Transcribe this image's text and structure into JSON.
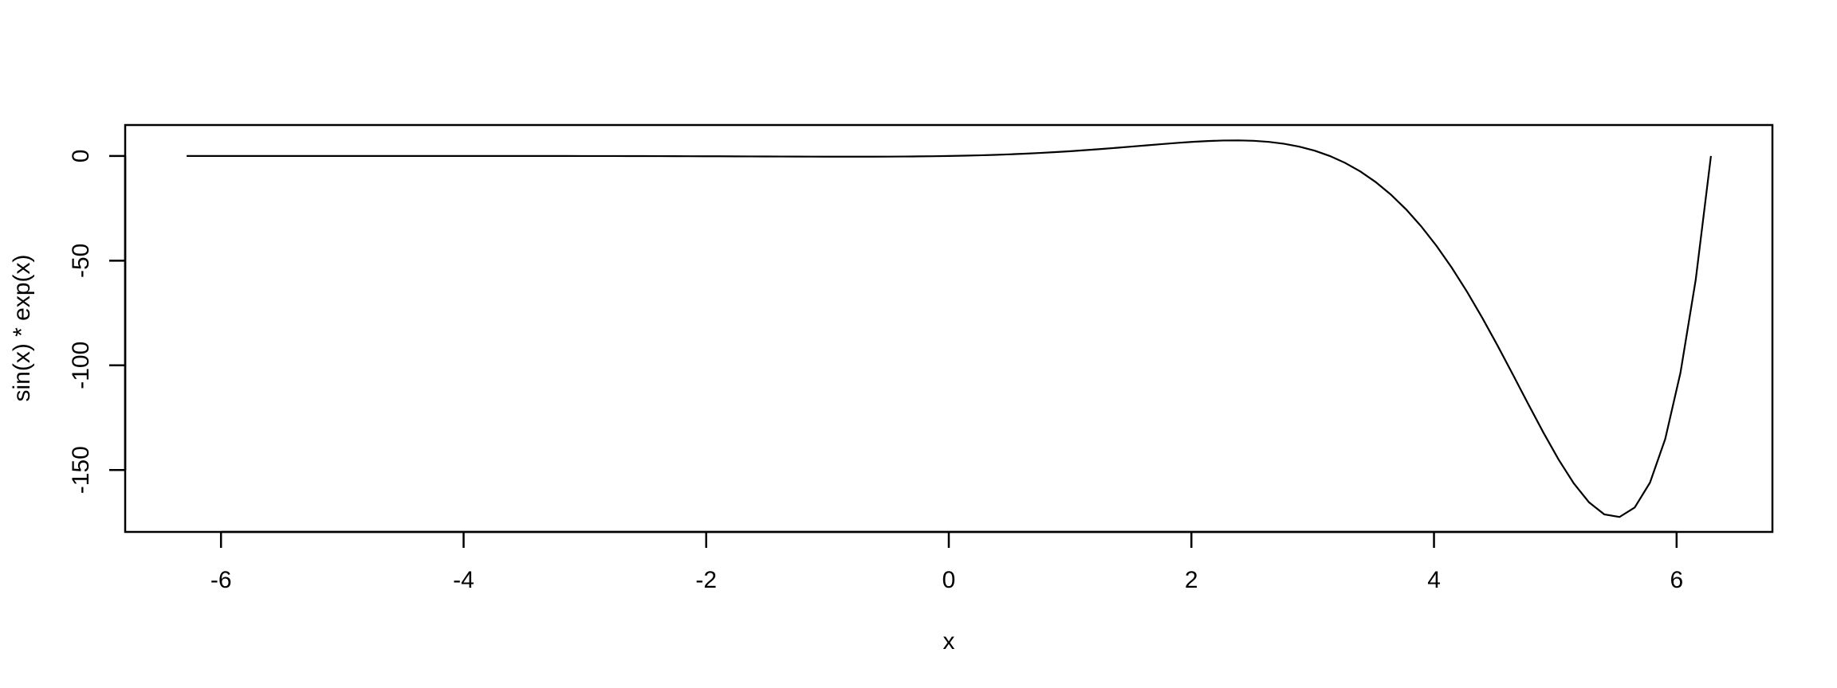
{
  "chart_data": {
    "type": "line",
    "function": "sin(x) * exp(x)",
    "x_range": [
      -6.283185,
      6.283185
    ],
    "samples": 101,
    "xlabel": "x",
    "ylabel": "sin(x) * exp(x)",
    "xlim": [
      -6.79,
      6.79
    ],
    "ylim": [
      -179.6,
      14.8
    ],
    "x_ticks": [
      -6,
      -4,
      -2,
      0,
      2,
      4,
      6
    ],
    "x_tick_labels": [
      "-6",
      "-4",
      "-2",
      "0",
      "2",
      "4",
      "6"
    ],
    "y_ticks": [
      0,
      -50,
      -100,
      -150
    ],
    "y_tick_labels": [
      "0",
      "-50",
      "-100",
      "-150"
    ],
    "grid": false,
    "line_color": "#000000"
  }
}
